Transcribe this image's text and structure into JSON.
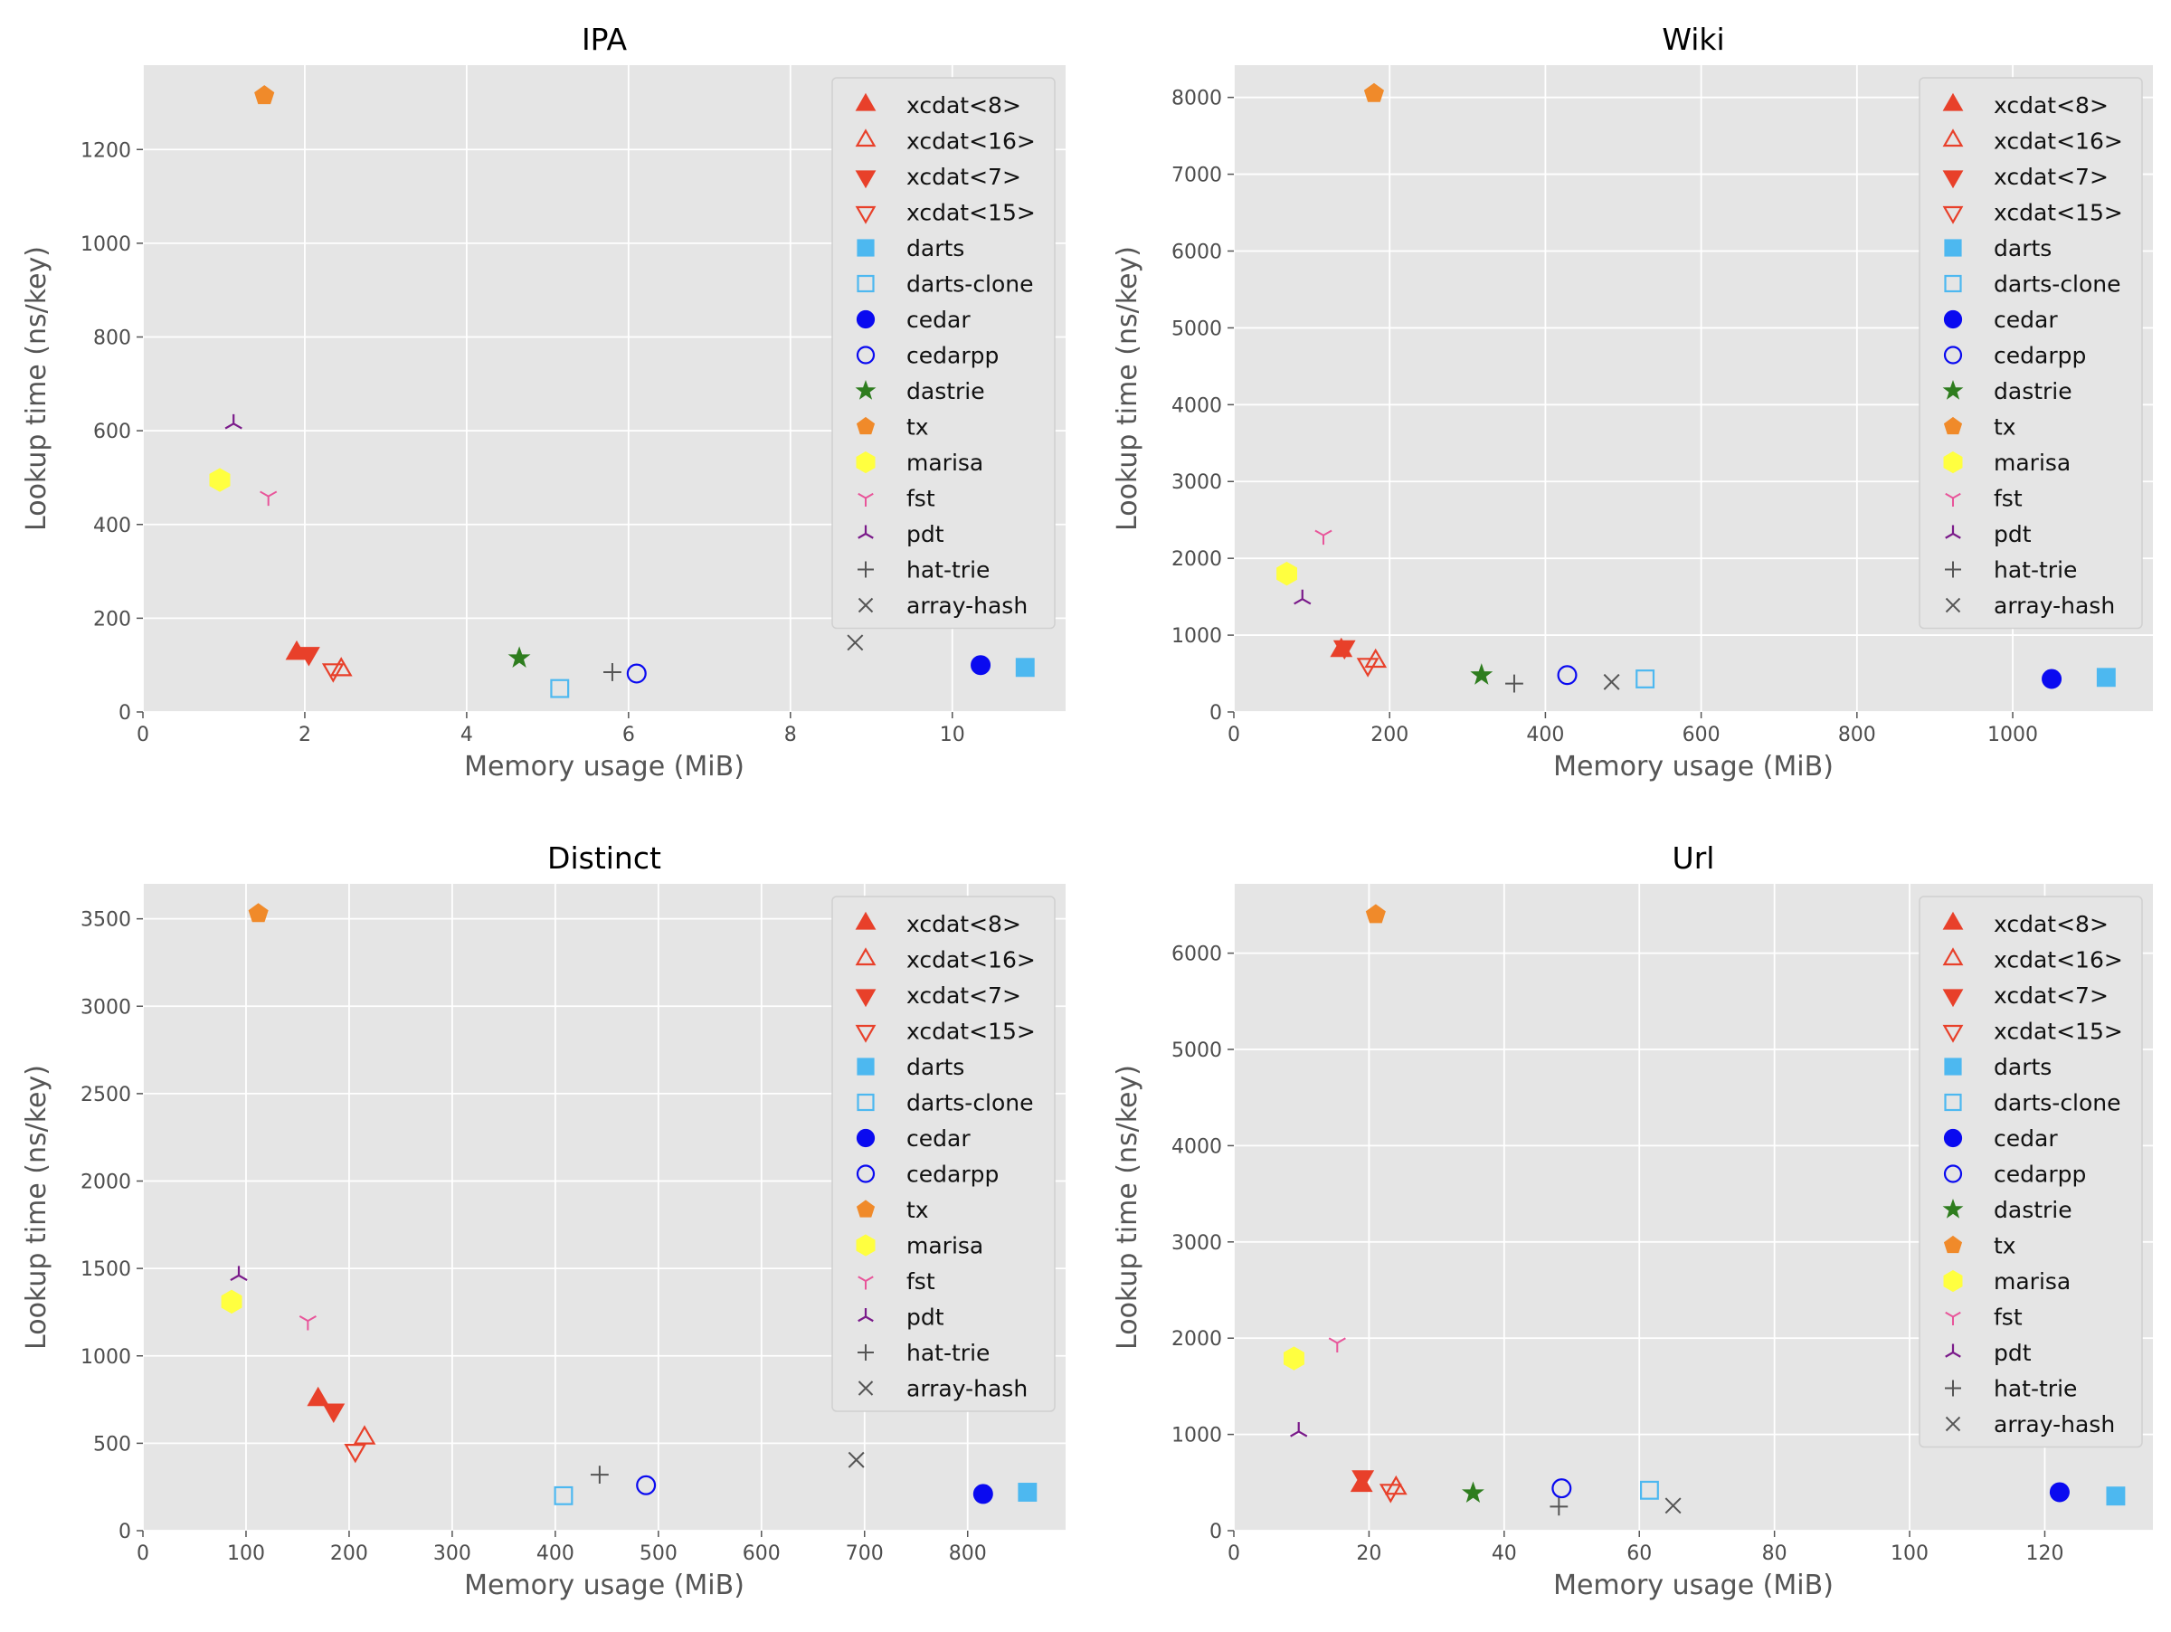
{
  "figure": {
    "xlabel": "Memory usage (MiB)",
    "ylabel": "Lookup time (ns/key)"
  },
  "series_styles": [
    {
      "name": "xcdat<8>",
      "marker": "triangle-up-filled",
      "color": "#e8402a"
    },
    {
      "name": "xcdat<16>",
      "marker": "triangle-up-open",
      "color": "#e8402a"
    },
    {
      "name": "xcdat<7>",
      "marker": "triangle-down-filled",
      "color": "#e8402a"
    },
    {
      "name": "xcdat<15>",
      "marker": "triangle-down-open",
      "color": "#e8402a"
    },
    {
      "name": "darts",
      "marker": "square-filled",
      "color": "#4db8f0"
    },
    {
      "name": "darts-clone",
      "marker": "square-open",
      "color": "#4db8f0"
    },
    {
      "name": "cedar",
      "marker": "circle-filled",
      "color": "#0a0af0"
    },
    {
      "name": "cedarpp",
      "marker": "circle-open",
      "color": "#0a0af0"
    },
    {
      "name": "dastrie",
      "marker": "star-filled",
      "color": "#2e7d1e"
    },
    {
      "name": "tx",
      "marker": "pentagon-filled",
      "color": "#f08a2a"
    },
    {
      "name": "marisa",
      "marker": "hexagon-filled",
      "color": "#ffff40"
    },
    {
      "name": "fst",
      "marker": "tri-down",
      "color": "#e8559a"
    },
    {
      "name": "pdt",
      "marker": "tri-up",
      "color": "#7a1a8a"
    },
    {
      "name": "hat-trie",
      "marker": "plus",
      "color": "#555555"
    },
    {
      "name": "array-hash",
      "marker": "x",
      "color": "#555555"
    }
  ],
  "chart_data": [
    {
      "type": "scatter",
      "title": "IPA",
      "xlabel": "Memory usage (MiB)",
      "ylabel": "Lookup time (ns/key)",
      "xlim": [
        0,
        11.4
      ],
      "ylim": [
        0,
        1380
      ],
      "xticks": [
        0,
        2,
        4,
        6,
        8,
        10
      ],
      "yticks": [
        0,
        200,
        400,
        600,
        800,
        1000,
        1200
      ],
      "legend": "top-right",
      "series": [
        {
          "name": "xcdat<8>",
          "x": 1.9,
          "y": 125
        },
        {
          "name": "xcdat<16>",
          "x": 2.45,
          "y": 90
        },
        {
          "name": "xcdat<7>",
          "x": 2.05,
          "y": 125
        },
        {
          "name": "xcdat<15>",
          "x": 2.35,
          "y": 90
        },
        {
          "name": "darts",
          "x": 10.9,
          "y": 95
        },
        {
          "name": "darts-clone",
          "x": 5.15,
          "y": 50
        },
        {
          "name": "cedar",
          "x": 10.35,
          "y": 100
        },
        {
          "name": "cedarpp",
          "x": 6.1,
          "y": 82
        },
        {
          "name": "dastrie",
          "x": 4.65,
          "y": 115
        },
        {
          "name": "tx",
          "x": 1.5,
          "y": 1315
        },
        {
          "name": "marisa",
          "x": 0.95,
          "y": 495
        },
        {
          "name": "fst",
          "x": 1.55,
          "y": 460
        },
        {
          "name": "pdt",
          "x": 1.12,
          "y": 615
        },
        {
          "name": "hat-trie",
          "x": 5.8,
          "y": 85
        },
        {
          "name": "array-hash",
          "x": 8.8,
          "y": 148
        }
      ]
    },
    {
      "type": "scatter",
      "title": "Wiki",
      "xlabel": "Memory usage (MiB)",
      "ylabel": "Lookup time (ns/key)",
      "xlim": [
        0,
        1180
      ],
      "ylim": [
        0,
        8420
      ],
      "xticks": [
        0,
        200,
        400,
        600,
        800,
        1000
      ],
      "yticks": [
        0,
        1000,
        2000,
        3000,
        4000,
        5000,
        6000,
        7000,
        8000
      ],
      "legend": "top-right",
      "series": [
        {
          "name": "xcdat<8>",
          "x": 138,
          "y": 800
        },
        {
          "name": "xcdat<16>",
          "x": 182,
          "y": 660
        },
        {
          "name": "xcdat<7>",
          "x": 142,
          "y": 850
        },
        {
          "name": "xcdat<15>",
          "x": 172,
          "y": 620
        },
        {
          "name": "darts",
          "x": 1120,
          "y": 450
        },
        {
          "name": "darts-clone",
          "x": 528,
          "y": 430
        },
        {
          "name": "cedar",
          "x": 1050,
          "y": 430
        },
        {
          "name": "cedarpp",
          "x": 428,
          "y": 480
        },
        {
          "name": "dastrie",
          "x": 318,
          "y": 480
        },
        {
          "name": "tx",
          "x": 180,
          "y": 8050
        },
        {
          "name": "marisa",
          "x": 68,
          "y": 1800
        },
        {
          "name": "fst",
          "x": 115,
          "y": 2300
        },
        {
          "name": "pdt",
          "x": 88,
          "y": 1470
        },
        {
          "name": "hat-trie",
          "x": 360,
          "y": 370
        },
        {
          "name": "array-hash",
          "x": 485,
          "y": 390
        }
      ]
    },
    {
      "type": "scatter",
      "title": "Distinct",
      "xlabel": "Memory usage (MiB)",
      "ylabel": "Lookup time (ns/key)",
      "xlim": [
        0,
        895
      ],
      "ylim": [
        0,
        3700
      ],
      "xticks": [
        0,
        100,
        200,
        300,
        400,
        500,
        600,
        700,
        800
      ],
      "yticks": [
        0,
        500,
        1000,
        1500,
        2000,
        2500,
        3000,
        3500
      ],
      "legend": "top-right",
      "series": [
        {
          "name": "xcdat<8>",
          "x": 170,
          "y": 750
        },
        {
          "name": "xcdat<16>",
          "x": 215,
          "y": 530
        },
        {
          "name": "xcdat<7>",
          "x": 185,
          "y": 690
        },
        {
          "name": "xcdat<15>",
          "x": 206,
          "y": 460
        },
        {
          "name": "darts",
          "x": 858,
          "y": 220
        },
        {
          "name": "darts-clone",
          "x": 408,
          "y": 200
        },
        {
          "name": "cedar",
          "x": 815,
          "y": 210
        },
        {
          "name": "cedarpp",
          "x": 488,
          "y": 260
        },
        {
          "name": "tx",
          "x": 112,
          "y": 3530
        },
        {
          "name": "marisa",
          "x": 86,
          "y": 1310
        },
        {
          "name": "fst",
          "x": 160,
          "y": 1200
        },
        {
          "name": "pdt",
          "x": 93,
          "y": 1460
        },
        {
          "name": "hat-trie",
          "x": 443,
          "y": 320
        },
        {
          "name": "array-hash",
          "x": 692,
          "y": 405
        }
      ]
    },
    {
      "type": "scatter",
      "title": "Url",
      "xlabel": "Memory usage (MiB)",
      "ylabel": "Lookup time (ns/key)",
      "xlim": [
        0,
        136
      ],
      "ylim": [
        0,
        6720
      ],
      "xticks": [
        0,
        20,
        40,
        60,
        80,
        100,
        120
      ],
      "yticks": [
        0,
        1000,
        2000,
        3000,
        4000,
        5000,
        6000
      ],
      "legend": "top-right",
      "series": [
        {
          "name": "xcdat<8>",
          "x": 18.9,
          "y": 470
        },
        {
          "name": "xcdat<16>",
          "x": 24,
          "y": 440
        },
        {
          "name": "xcdat<7>",
          "x": 19.1,
          "y": 560
        },
        {
          "name": "xcdat<15>",
          "x": 23.2,
          "y": 420
        },
        {
          "name": "darts",
          "x": 130.5,
          "y": 360
        },
        {
          "name": "darts-clone",
          "x": 61.5,
          "y": 420
        },
        {
          "name": "cedar",
          "x": 122.2,
          "y": 400
        },
        {
          "name": "cedarpp",
          "x": 48.5,
          "y": 440
        },
        {
          "name": "dastrie",
          "x": 35.4,
          "y": 390
        },
        {
          "name": "tx",
          "x": 21,
          "y": 6400
        },
        {
          "name": "marisa",
          "x": 8.9,
          "y": 1790
        },
        {
          "name": "fst",
          "x": 15.3,
          "y": 1950
        },
        {
          "name": "pdt",
          "x": 9.6,
          "y": 1030
        },
        {
          "name": "hat-trie",
          "x": 48.1,
          "y": 250
        },
        {
          "name": "array-hash",
          "x": 65,
          "y": 260
        }
      ]
    }
  ]
}
